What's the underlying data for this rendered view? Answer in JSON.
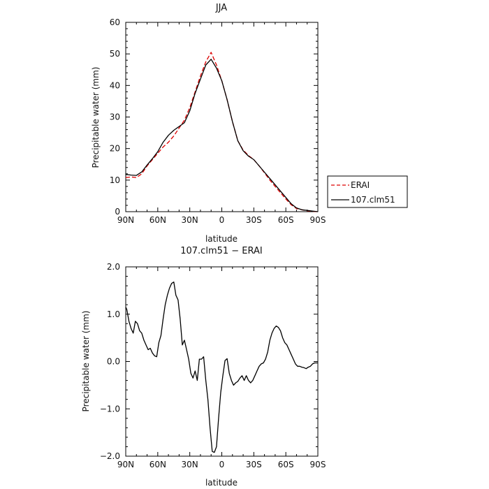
{
  "chart_data": [
    {
      "type": "line",
      "title": "JJA",
      "xlabel": "latitude",
      "ylabel": "Precipitable water (mm)",
      "xlim": [
        90,
        -90
      ],
      "ylim": [
        0,
        60
      ],
      "xticks": [
        90,
        60,
        30,
        0,
        -30,
        -60,
        -90
      ],
      "xtick_labels": [
        "90N",
        "60N",
        "30N",
        "0",
        "30S",
        "60S",
        "90S"
      ],
      "yticks": [
        0,
        10,
        20,
        30,
        40,
        50,
        60
      ],
      "ytick_labels": [
        "0",
        "10",
        "20",
        "30",
        "40",
        "50",
        "60"
      ],
      "grid": false,
      "legend": "right",
      "series": [
        {
          "name": "ERAI",
          "color": "#dd0000",
          "dash": "dashed",
          "x": [
            90,
            85,
            80,
            75,
            70,
            65,
            60,
            55,
            50,
            45,
            40,
            35,
            30,
            25,
            20,
            15,
            10,
            5,
            0,
            -5,
            -10,
            -15,
            -20,
            -25,
            -30,
            -35,
            -40,
            -45,
            -50,
            -55,
            -60,
            -65,
            -70,
            -75,
            -80,
            -85,
            -90
          ],
          "values": [
            10.8,
            11.0,
            10.8,
            12.0,
            14.5,
            16.5,
            18.5,
            20.5,
            22.0,
            24.0,
            26.5,
            29.0,
            33.0,
            38.0,
            43.0,
            47.5,
            50.5,
            46.5,
            41.5,
            35.5,
            28.5,
            22.5,
            19.5,
            17.8,
            16.5,
            14.5,
            12.3,
            10.0,
            8.0,
            6.0,
            4.0,
            2.2,
            1.0,
            0.6,
            0.3,
            0.1,
            0.0
          ]
        },
        {
          "name": "107.clm51",
          "color": "#000000",
          "dash": "solid",
          "x": [
            90,
            85,
            80,
            75,
            70,
            65,
            60,
            55,
            50,
            45,
            40,
            35,
            30,
            25,
            20,
            15,
            10,
            5,
            0,
            -5,
            -10,
            -15,
            -20,
            -25,
            -30,
            -35,
            -40,
            -45,
            -50,
            -55,
            -60,
            -65,
            -70,
            -75,
            -80,
            -85,
            -90
          ],
          "values": [
            11.8,
            11.6,
            11.5,
            12.6,
            14.8,
            16.8,
            19.0,
            22.0,
            24.2,
            25.8,
            27.0,
            28.2,
            32.0,
            37.5,
            42.0,
            46.5,
            48.3,
            45.5,
            41.5,
            35.5,
            28.5,
            22.5,
            19.3,
            17.6,
            16.5,
            14.5,
            12.5,
            10.5,
            8.5,
            6.5,
            4.5,
            2.5,
            1.2,
            0.6,
            0.4,
            0.2,
            0.0
          ]
        }
      ]
    },
    {
      "type": "line",
      "title": "107.clm51 − ERAI",
      "xlabel": "latitude",
      "ylabel": "Precipitable water (mm)",
      "xlim": [
        90,
        -90
      ],
      "ylim": [
        -2.0,
        2.0
      ],
      "xticks": [
        90,
        60,
        30,
        0,
        -30,
        -60,
        -90
      ],
      "xtick_labels": [
        "90N",
        "60N",
        "30N",
        "0",
        "30S",
        "60S",
        "90S"
      ],
      "yticks": [
        -2.0,
        -1.0,
        0.0,
        1.0,
        2.0
      ],
      "ytick_labels": [
        "−2.0",
        "−1.0",
        "0.0",
        "1.0",
        "2.0"
      ],
      "grid": false,
      "series": [
        {
          "color": "#000000",
          "dash": "solid",
          "x": [
            90,
            89,
            87,
            85,
            83,
            81,
            79,
            77,
            75,
            73,
            71,
            69,
            67,
            65,
            63,
            61,
            59,
            57,
            55,
            53,
            51,
            49,
            47,
            45,
            43,
            41,
            39,
            37,
            35,
            33,
            31,
            29,
            27,
            25,
            23,
            21,
            19,
            17,
            15,
            13,
            11,
            9,
            7,
            5,
            3,
            1,
            -1,
            -3,
            -5,
            -7,
            -9,
            -11,
            -13,
            -15,
            -17,
            -19,
            -21,
            -23,
            -25,
            -27,
            -29,
            -31,
            -33,
            -35,
            -37,
            -39,
            -41,
            -43,
            -45,
            -47,
            -49,
            -51,
            -53,
            -55,
            -57,
            -59,
            -61,
            -63,
            -65,
            -67,
            -69,
            -71,
            -73,
            -75,
            -77,
            -79,
            -81,
            -83,
            -85,
            -87,
            -89,
            -90
          ],
          "values": [
            1.15,
            1.1,
            0.85,
            0.7,
            0.6,
            0.85,
            0.8,
            0.65,
            0.6,
            0.45,
            0.35,
            0.25,
            0.28,
            0.18,
            0.12,
            0.1,
            0.4,
            0.55,
            0.9,
            1.2,
            1.4,
            1.55,
            1.65,
            1.68,
            1.4,
            1.3,
            0.9,
            0.35,
            0.45,
            0.25,
            0.05,
            -0.25,
            -0.35,
            -0.2,
            -0.4,
            0.05,
            0.05,
            0.1,
            -0.4,
            -0.8,
            -1.4,
            -1.9,
            -1.92,
            -1.8,
            -1.2,
            -0.65,
            -0.3,
            0.02,
            0.06,
            -0.25,
            -0.4,
            -0.5,
            -0.45,
            -0.42,
            -0.35,
            -0.3,
            -0.4,
            -0.3,
            -0.4,
            -0.45,
            -0.4,
            -0.3,
            -0.2,
            -0.1,
            -0.05,
            -0.03,
            0.05,
            0.2,
            0.45,
            0.6,
            0.7,
            0.75,
            0.72,
            0.65,
            0.5,
            0.4,
            0.35,
            0.25,
            0.15,
            0.05,
            -0.05,
            -0.1,
            -0.1,
            -0.12,
            -0.13,
            -0.15,
            -0.12,
            -0.1,
            -0.05,
            -0.03,
            -0.03,
            -0.03
          ]
        }
      ]
    }
  ]
}
